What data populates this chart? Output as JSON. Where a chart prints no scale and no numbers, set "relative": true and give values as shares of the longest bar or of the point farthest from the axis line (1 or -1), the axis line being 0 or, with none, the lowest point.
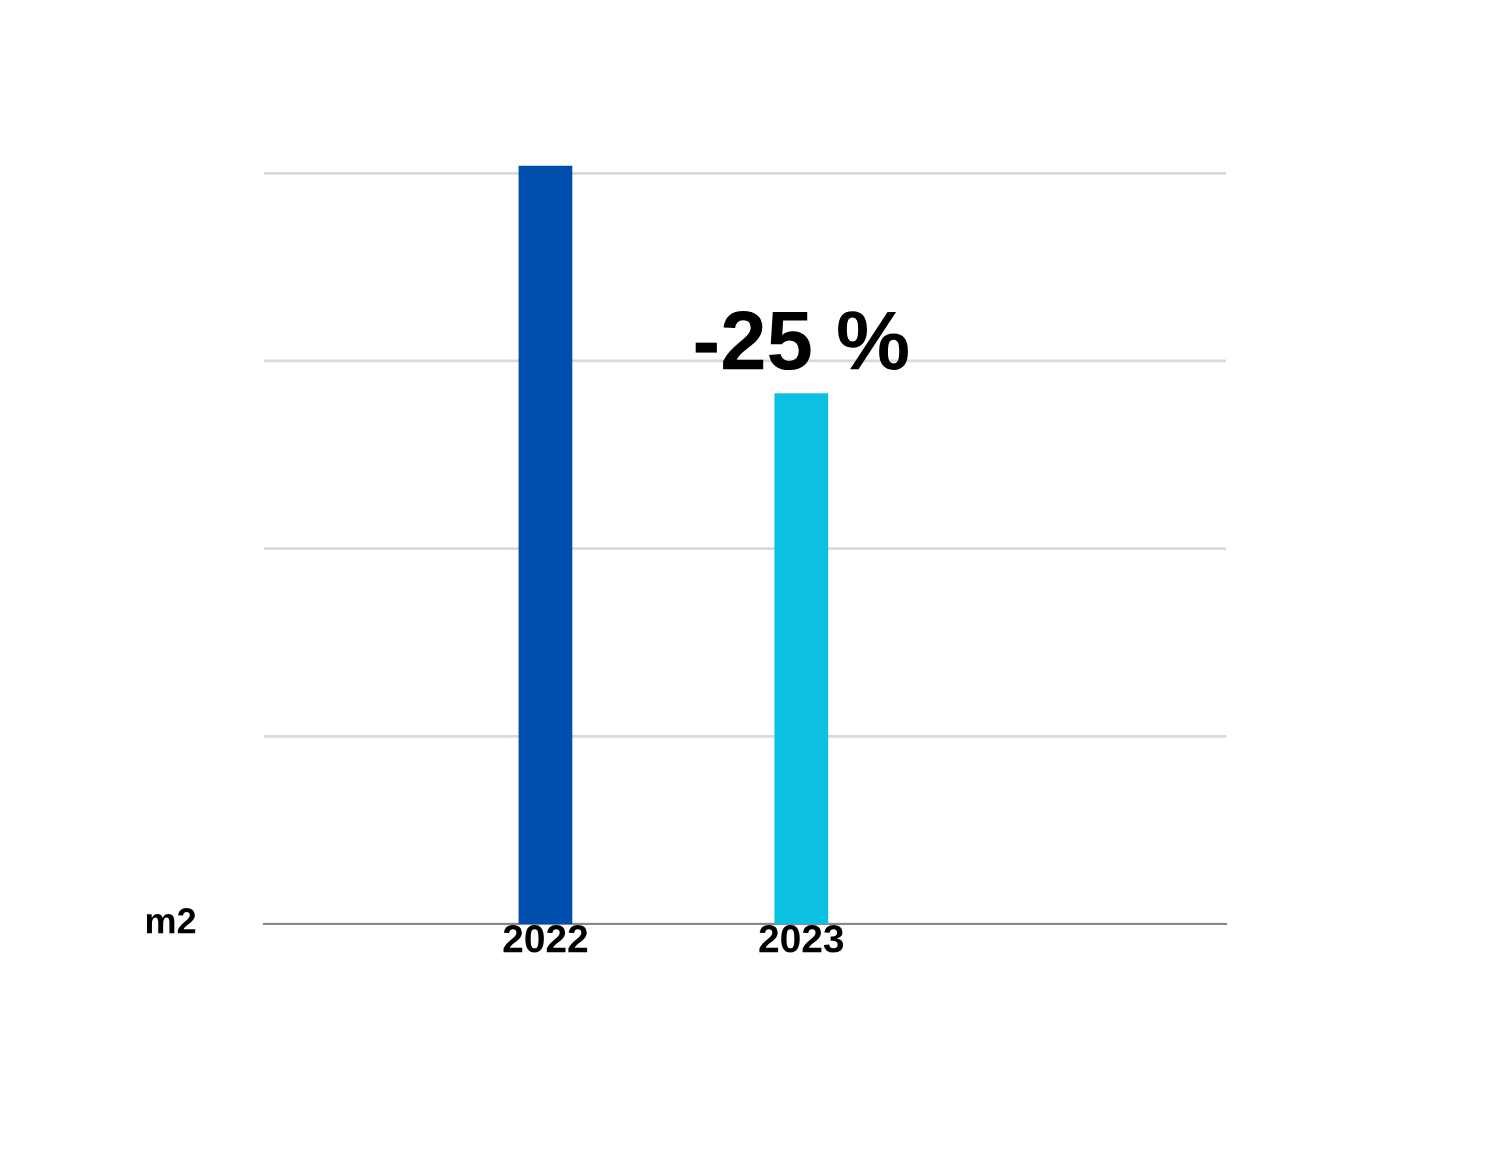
{
  "chart_data": {
    "type": "bar",
    "relative": true,
    "categories": [
      "2022",
      "2023"
    ],
    "values": [
      1,
      0.7
    ],
    "colors": [
      "#004ead",
      "#0bc0e0"
    ],
    "grid": "y",
    "annotations": [
      "-25 %",
      "m2"
    ]
  }
}
